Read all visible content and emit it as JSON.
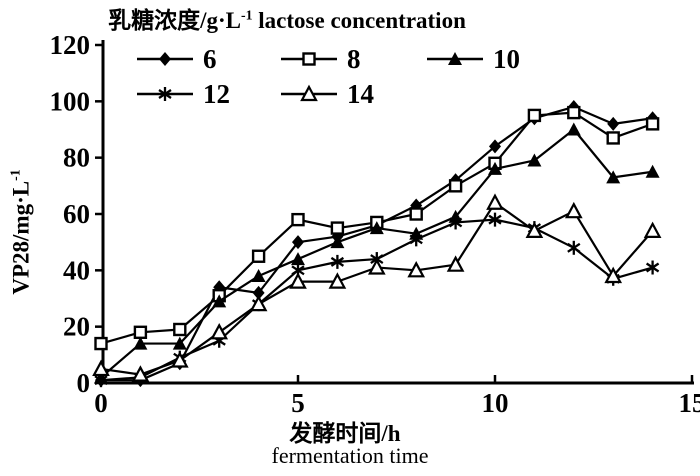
{
  "title": {
    "part1": "乳糖浓度/g·L",
    "sup": "-1",
    "part2": " lactose concentration"
  },
  "axes": {
    "y": {
      "label_main": "VP28/mg·L",
      "label_sup": "-1"
    },
    "x": {
      "label_zh": "发酵时间/h",
      "label_en": "fermentation time"
    }
  },
  "chart_data": {
    "type": "line",
    "title": "乳糖浓度/g·L⁻¹ lactose concentration",
    "xlabel": "发酵时间/h fermentation time",
    "ylabel": "VP28/mg·L⁻¹",
    "xlim": [
      0,
      15
    ],
    "ylim": [
      0,
      120
    ],
    "xticks": [
      0,
      5,
      10,
      15
    ],
    "yticks": [
      0,
      20,
      40,
      60,
      80,
      100,
      120
    ],
    "grid": false,
    "legend_position": "top-left",
    "line_color": "#000000",
    "background": "#ffffff",
    "x": [
      0,
      1,
      2,
      3,
      4,
      5,
      6,
      7,
      8,
      9,
      10,
      11,
      12,
      13,
      14
    ],
    "series": [
      {
        "name": "6",
        "marker": "filled-diamond",
        "values": [
          1,
          1,
          7,
          34,
          32,
          50,
          52,
          56,
          63,
          72,
          84,
          94,
          98,
          92,
          94
        ]
      },
      {
        "name": "8",
        "marker": "open-square",
        "values": [
          14,
          18,
          19,
          31,
          45,
          58,
          55,
          57,
          60,
          70,
          78,
          95,
          96,
          87,
          92
        ]
      },
      {
        "name": "10",
        "marker": "filled-triangle",
        "values": [
          2,
          14,
          14,
          29,
          38,
          44,
          50,
          55,
          53,
          59,
          76,
          79,
          90,
          73,
          75
        ]
      },
      {
        "name": "12",
        "marker": "asterisk",
        "values": [
          1,
          2,
          9,
          15,
          28,
          40,
          43,
          44,
          51,
          57,
          58,
          55,
          48,
          37,
          41
        ]
      },
      {
        "name": "14",
        "marker": "open-triangle",
        "values": [
          5,
          3,
          8,
          18,
          28,
          36,
          36,
          41,
          40,
          42,
          64,
          54,
          61,
          38,
          54
        ]
      }
    ]
  }
}
